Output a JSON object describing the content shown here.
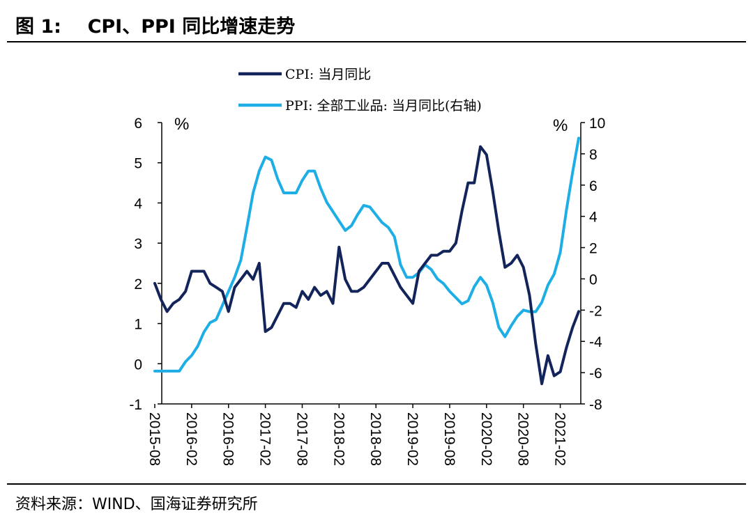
{
  "figure": {
    "title": "图 1:    CPI、PPI 同比增速走势",
    "source": "资料来源：WIND、国海证券研究所"
  },
  "chart_data": {
    "type": "line",
    "x": [
      "2015-08",
      "2015-09",
      "2015-10",
      "2015-11",
      "2015-12",
      "2016-01",
      "2016-02",
      "2016-03",
      "2016-04",
      "2016-05",
      "2016-06",
      "2016-07",
      "2016-08",
      "2016-09",
      "2016-10",
      "2016-11",
      "2016-12",
      "2017-01",
      "2017-02",
      "2017-03",
      "2017-04",
      "2017-05",
      "2017-06",
      "2017-07",
      "2017-08",
      "2017-09",
      "2017-10",
      "2017-11",
      "2017-12",
      "2018-01",
      "2018-02",
      "2018-03",
      "2018-04",
      "2018-05",
      "2018-06",
      "2018-07",
      "2018-08",
      "2018-09",
      "2018-10",
      "2018-11",
      "2018-12",
      "2019-01",
      "2019-02",
      "2019-03",
      "2019-04",
      "2019-05",
      "2019-06",
      "2019-07",
      "2019-08",
      "2019-09",
      "2019-10",
      "2019-11",
      "2019-12",
      "2020-01",
      "2020-02",
      "2020-03",
      "2020-04",
      "2020-05",
      "2020-06",
      "2020-07",
      "2020-08",
      "2020-09",
      "2020-10",
      "2020-11",
      "2020-12",
      "2021-01",
      "2021-02",
      "2021-03",
      "2021-04",
      "2021-05"
    ],
    "x_tick_labels": [
      "2015-08",
      "2016-02",
      "2016-08",
      "2017-02",
      "2017-08",
      "2018-02",
      "2018-08",
      "2019-02",
      "2019-08",
      "2020-02",
      "2020-08",
      "2021-02"
    ],
    "series": [
      {
        "name": "CPI: 当月同比",
        "axis": "left",
        "color": "#13245a",
        "values": [
          2.0,
          1.6,
          1.3,
          1.5,
          1.6,
          1.8,
          2.3,
          2.3,
          2.3,
          2.0,
          1.9,
          1.8,
          1.3,
          1.9,
          2.1,
          2.3,
          2.1,
          2.5,
          0.8,
          0.9,
          1.2,
          1.5,
          1.5,
          1.4,
          1.8,
          1.6,
          1.9,
          1.7,
          1.8,
          1.5,
          2.9,
          2.1,
          1.8,
          1.8,
          1.9,
          2.1,
          2.3,
          2.5,
          2.5,
          2.2,
          1.9,
          1.7,
          1.5,
          2.3,
          2.5,
          2.7,
          2.7,
          2.8,
          2.8,
          3.0,
          3.8,
          4.5,
          4.5,
          5.4,
          5.2,
          4.3,
          3.3,
          2.4,
          2.5,
          2.7,
          2.4,
          1.7,
          0.5,
          -0.5,
          0.2,
          -0.3,
          -0.2,
          0.4,
          0.9,
          1.3
        ]
      },
      {
        "name": "PPI: 全部工业品: 当月同比(右轴)",
        "axis": "right",
        "color": "#1eaee6",
        "values": [
          -5.9,
          -5.9,
          -5.9,
          -5.9,
          -5.9,
          -5.3,
          -4.9,
          -4.3,
          -3.4,
          -2.8,
          -2.6,
          -1.7,
          -0.8,
          0.1,
          1.2,
          3.3,
          5.5,
          6.9,
          7.8,
          7.6,
          6.4,
          5.5,
          5.5,
          5.5,
          6.3,
          6.9,
          6.9,
          5.8,
          4.9,
          4.3,
          3.7,
          3.1,
          3.4,
          4.1,
          4.7,
          4.6,
          4.1,
          3.6,
          3.3,
          2.7,
          0.9,
          0.1,
          0.1,
          0.4,
          0.9,
          0.6,
          0.0,
          -0.3,
          -0.8,
          -1.2,
          -1.6,
          -1.4,
          -0.5,
          0.1,
          -0.4,
          -1.5,
          -3.1,
          -3.7,
          -3.0,
          -2.4,
          -2.0,
          -2.1,
          -2.1,
          -1.5,
          -0.4,
          0.3,
          1.7,
          4.4,
          6.8,
          9.0
        ]
      }
    ],
    "y_left": {
      "unit": "%",
      "min": -1,
      "max": 6,
      "ticks": [
        "6",
        "5",
        "4",
        "3",
        "2",
        "1",
        "0",
        "-1"
      ]
    },
    "y_right": {
      "unit": "%",
      "min": -8,
      "max": 10,
      "ticks": [
        "10",
        "8",
        "6",
        "4",
        "2",
        "0",
        "-2",
        "-4",
        "-6",
        "-8"
      ]
    },
    "legend": {
      "placement": "top-center",
      "entries": [
        "CPI: 当月同比",
        "PPI: 全部工业品: 当月同比(右轴)"
      ]
    },
    "grid": false
  }
}
